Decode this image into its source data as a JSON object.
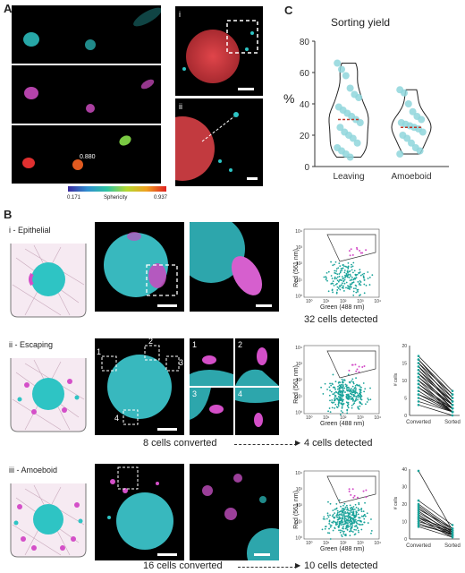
{
  "panels": {
    "A": "A",
    "B": "B",
    "C": "C",
    "a_sub_i": "i",
    "a_sub_ii": "ii",
    "sphericity_value": "0.880",
    "colorbar": {
      "min": "0.171",
      "label": "Sphericity",
      "max": "0.937"
    }
  },
  "chart_data": [
    {
      "type": "violin",
      "title": "Sorting yield",
      "ylabel": "%",
      "xlabel": "",
      "categories": [
        "Leaving",
        "Amoeboid"
      ],
      "ylim": [
        0,
        80
      ],
      "yticks": [
        0,
        20,
        40,
        60,
        80
      ],
      "series": [
        {
          "name": "Leaving",
          "values": [
            66,
            62,
            58,
            50,
            46,
            44,
            38,
            36,
            34,
            32,
            30,
            28,
            25,
            22,
            20,
            18,
            15,
            12,
            10,
            8,
            6
          ],
          "median": 30
        },
        {
          "name": "Amoeboid",
          "values": [
            49,
            47,
            40,
            35,
            32,
            30,
            28,
            27,
            26,
            25,
            24,
            22,
            20,
            18,
            15,
            12,
            10,
            8
          ],
          "median": 25
        }
      ]
    },
    {
      "type": "line",
      "ylabel": "# cells",
      "categories": [
        "Converted",
        "Sorted"
      ],
      "ylim": [
        0,
        20
      ],
      "yticks": [
        0,
        5,
        10,
        15,
        20
      ],
      "pairs": [
        [
          17,
          7
        ],
        [
          16,
          6
        ],
        [
          16,
          5
        ],
        [
          15,
          6
        ],
        [
          15,
          4
        ],
        [
          14,
          5
        ],
        [
          14,
          3
        ],
        [
          13,
          4
        ],
        [
          13,
          3
        ],
        [
          12,
          4
        ],
        [
          12,
          2
        ],
        [
          11,
          3
        ],
        [
          11,
          2
        ],
        [
          10,
          3
        ],
        [
          10,
          1
        ],
        [
          9,
          2
        ],
        [
          9,
          1
        ],
        [
          8,
          2
        ],
        [
          8,
          1
        ],
        [
          7,
          1
        ],
        [
          6,
          2
        ],
        [
          6,
          1
        ],
        [
          5,
          1
        ],
        [
          4,
          1
        ],
        [
          3,
          0
        ]
      ]
    },
    {
      "type": "line",
      "ylabel": "# cells",
      "categories": [
        "Converted",
        "Sorted"
      ],
      "ylim": [
        0,
        40
      ],
      "yticks": [
        0,
        10,
        20,
        30,
        40
      ],
      "pairs": [
        [
          39,
          5
        ],
        [
          22,
          8
        ],
        [
          20,
          6
        ],
        [
          19,
          5
        ],
        [
          18,
          4
        ],
        [
          17,
          6
        ],
        [
          16,
          3
        ],
        [
          15,
          4
        ],
        [
          14,
          2
        ],
        [
          13,
          3
        ],
        [
          12,
          5
        ],
        [
          12,
          2
        ],
        [
          11,
          1
        ],
        [
          10,
          4
        ],
        [
          9,
          2
        ],
        [
          8,
          3
        ],
        [
          7,
          1
        ]
      ]
    }
  ],
  "rows": [
    {
      "label": "i - Epithelial",
      "scalebar_labels": [],
      "facs_caption": "32 cells detected",
      "flow_text": ""
    },
    {
      "label": "ii - Escaping",
      "box_numbers": [
        "1",
        "2",
        "3",
        "4"
      ],
      "flow_left": "8 cells converted",
      "flow_right": "4 cells detected"
    },
    {
      "label": "iii - Amoeboid",
      "flow_left": "16 cells converted",
      "flow_right": "10 cells detected"
    }
  ],
  "facs": {
    "ylabel": "Red (561 nm)",
    "xlabel": "Green (488 nm)",
    "yticks": [
      "10⁴",
      "10³",
      "10²",
      "10¹",
      "10⁰"
    ],
    "xticks": [
      "10⁰",
      "10¹",
      "10²",
      "10³",
      "10⁴"
    ]
  },
  "colors": {
    "cyan": "#2ec4c4",
    "magenta": "#d44fc8",
    "red": "#e0454a",
    "teal": "#1aa39a",
    "pink": "#d56ad2"
  }
}
